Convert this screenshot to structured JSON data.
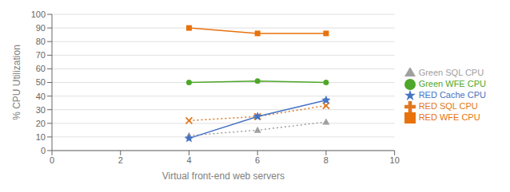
{
  "chart_data": {
    "type": "line",
    "x": [
      4,
      6,
      8
    ],
    "xlabel": "Virtual front-end web servers",
    "ylabel": "% CPU Utilization",
    "xlim": [
      0,
      10
    ],
    "ylim": [
      0,
      100
    ],
    "xticks": [
      0,
      2,
      4,
      6,
      8,
      10
    ],
    "yticks": [
      0,
      10,
      20,
      30,
      40,
      50,
      60,
      70,
      80,
      90,
      100
    ],
    "grid": true,
    "legend": "right",
    "series": [
      {
        "name": "RED WFE CPU",
        "color": "#E8720C",
        "marker": "square",
        "line_style": "solid",
        "values": [
          90,
          86,
          86
        ]
      },
      {
        "name": "Green WFE CPU",
        "color": "#4EA72A",
        "marker": "circle",
        "line_style": "solid",
        "values": [
          50,
          51,
          50
        ]
      },
      {
        "name": "RED SQL CPU",
        "color": "#E07820",
        "marker": "x",
        "line_style": "dotted",
        "values": [
          22,
          25,
          33
        ]
      },
      {
        "name": "Green SQL CPU",
        "color": "#A0A0A0",
        "marker": "triangle",
        "line_style": "dotted",
        "values": [
          11,
          15,
          21
        ]
      },
      {
        "name": "RED Cache CPU",
        "color": "#4472C4",
        "marker": "star",
        "line_style": "solid",
        "values": [
          9,
          25,
          37
        ]
      }
    ]
  }
}
